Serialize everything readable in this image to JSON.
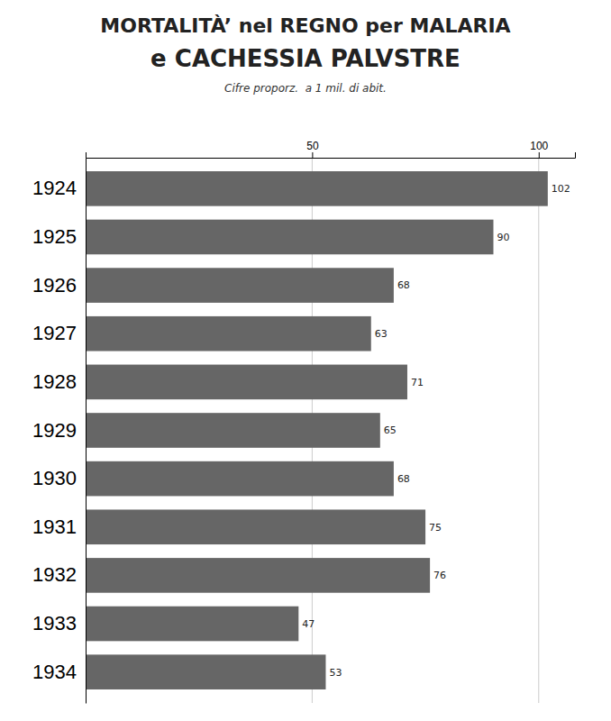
{
  "chart_data": {
    "type": "bar",
    "orientation": "horizontal",
    "title": "MORTALITÀ’ nel REGNO per MALARIA",
    "subtitle": "e CACHESSIA PALVSTRE",
    "annotations": [
      "Cifre proporz.  a 1 mil. di abit."
    ],
    "categories": [
      "1924",
      "1925",
      "1926",
      "1927",
      "1928",
      "1929",
      "1930",
      "1931",
      "1932",
      "1933",
      "1934"
    ],
    "values": [
      102,
      90,
      68,
      63,
      71,
      65,
      68,
      75,
      76,
      47,
      53
    ],
    "color": "#666666",
    "xlim": [
      0,
      108
    ],
    "xticks": [
      50,
      100
    ],
    "grid": true,
    "data_labels": true
  }
}
